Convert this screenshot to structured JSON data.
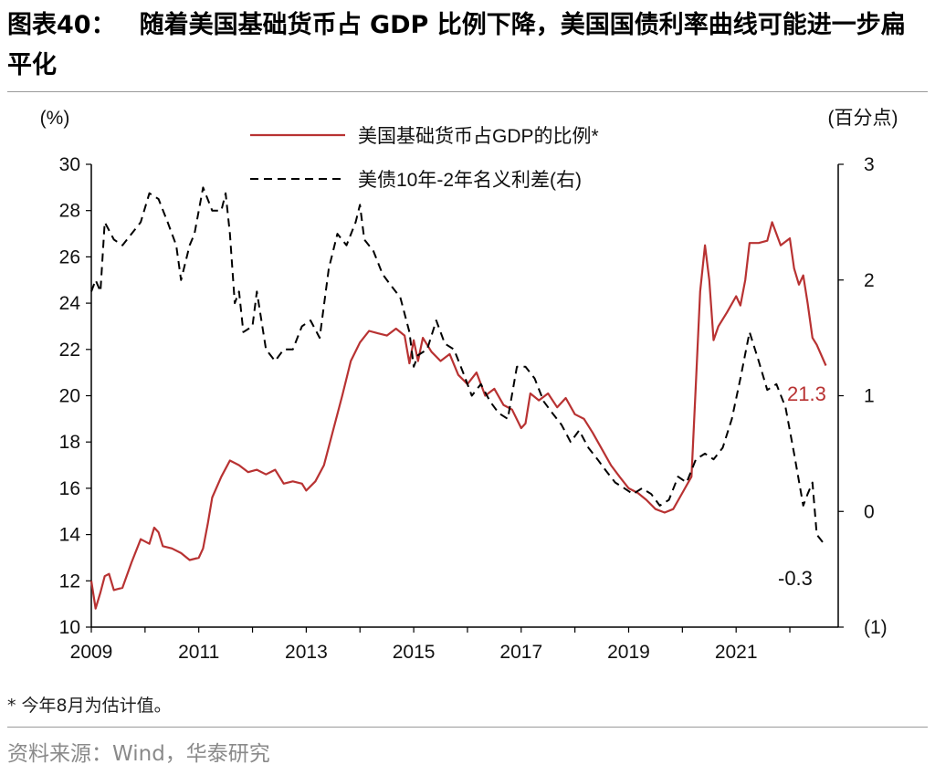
{
  "header": {
    "label": "图表40：",
    "text": "随着美国基础货币占 GDP 比例下降，美国国债利率曲线可能进一步扁平化"
  },
  "note": "* 今年8月为估计值。",
  "source": "资料来源：Wind，华泰研究",
  "chart_data": {
    "type": "line",
    "title": "",
    "y_left_unit": "(%)",
    "y_right_unit": "(百分点)",
    "x_ticks": [
      "2009",
      "2011",
      "2013",
      "2015",
      "2017",
      "2019",
      "2021"
    ],
    "x_range": [
      2009.0,
      2022.67
    ],
    "y_left_range": [
      10,
      30
    ],
    "y_left_ticks": [
      "10",
      "12",
      "14",
      "16",
      "18",
      "20",
      "22",
      "24",
      "26",
      "28",
      "30"
    ],
    "y_right_range": [
      -1,
      3
    ],
    "y_right_ticks": [
      "(1)",
      "0",
      "1",
      "2",
      "3"
    ],
    "legend_position": "top-center",
    "annotations": {
      "last_base_money": "21.3",
      "last_spread": "-0.3"
    },
    "colors": {
      "base_money": "#b83232",
      "spread": "#000000",
      "axis": "#000000",
      "label_red": "#b83232"
    },
    "series": [
      {
        "name": "美国基础货币占GDP的比例*",
        "axis": "left",
        "style": "solid",
        "points": [
          [
            2009.0,
            12.0
          ],
          [
            2009.08,
            10.8
          ],
          [
            2009.17,
            11.5
          ],
          [
            2009.25,
            12.2
          ],
          [
            2009.33,
            12.3
          ],
          [
            2009.42,
            11.6
          ],
          [
            2009.58,
            11.7
          ],
          [
            2009.75,
            12.8
          ],
          [
            2009.92,
            13.8
          ],
          [
            2010.08,
            13.6
          ],
          [
            2010.17,
            14.3
          ],
          [
            2010.25,
            14.1
          ],
          [
            2010.33,
            13.5
          ],
          [
            2010.5,
            13.4
          ],
          [
            2010.67,
            13.2
          ],
          [
            2010.83,
            12.9
          ],
          [
            2011.0,
            13.0
          ],
          [
            2011.08,
            13.4
          ],
          [
            2011.17,
            14.5
          ],
          [
            2011.25,
            15.6
          ],
          [
            2011.42,
            16.5
          ],
          [
            2011.58,
            17.2
          ],
          [
            2011.75,
            17.0
          ],
          [
            2011.92,
            16.7
          ],
          [
            2012.08,
            16.8
          ],
          [
            2012.25,
            16.6
          ],
          [
            2012.42,
            16.8
          ],
          [
            2012.58,
            16.2
          ],
          [
            2012.75,
            16.3
          ],
          [
            2012.92,
            16.2
          ],
          [
            2013.0,
            15.9
          ],
          [
            2013.17,
            16.3
          ],
          [
            2013.33,
            17.0
          ],
          [
            2013.5,
            18.5
          ],
          [
            2013.67,
            20.0
          ],
          [
            2013.83,
            21.5
          ],
          [
            2014.0,
            22.3
          ],
          [
            2014.17,
            22.8
          ],
          [
            2014.33,
            22.7
          ],
          [
            2014.5,
            22.6
          ],
          [
            2014.67,
            22.9
          ],
          [
            2014.83,
            22.6
          ],
          [
            2014.92,
            21.4
          ],
          [
            2015.0,
            22.4
          ],
          [
            2015.08,
            21.5
          ],
          [
            2015.17,
            22.5
          ],
          [
            2015.33,
            21.9
          ],
          [
            2015.5,
            21.5
          ],
          [
            2015.67,
            21.8
          ],
          [
            2015.83,
            20.9
          ],
          [
            2016.0,
            20.5
          ],
          [
            2016.17,
            21.0
          ],
          [
            2016.33,
            20.0
          ],
          [
            2016.5,
            20.3
          ],
          [
            2016.67,
            19.6
          ],
          [
            2016.83,
            19.4
          ],
          [
            2017.0,
            18.6
          ],
          [
            2017.08,
            18.8
          ],
          [
            2017.17,
            20.1
          ],
          [
            2017.33,
            19.8
          ],
          [
            2017.5,
            20.1
          ],
          [
            2017.67,
            19.5
          ],
          [
            2017.83,
            19.9
          ],
          [
            2018.0,
            19.2
          ],
          [
            2018.17,
            19.0
          ],
          [
            2018.33,
            18.4
          ],
          [
            2018.5,
            17.7
          ],
          [
            2018.67,
            17.0
          ],
          [
            2018.83,
            16.5
          ],
          [
            2019.0,
            16.0
          ],
          [
            2019.17,
            15.8
          ],
          [
            2019.33,
            15.5
          ],
          [
            2019.5,
            15.1
          ],
          [
            2019.67,
            14.95
          ],
          [
            2019.83,
            15.1
          ],
          [
            2020.0,
            15.8
          ],
          [
            2020.17,
            16.5
          ],
          [
            2020.25,
            20.5
          ],
          [
            2020.33,
            24.5
          ],
          [
            2020.42,
            26.5
          ],
          [
            2020.5,
            25.0
          ],
          [
            2020.58,
            22.4
          ],
          [
            2020.67,
            23.0
          ],
          [
            2020.83,
            23.6
          ],
          [
            2021.0,
            24.3
          ],
          [
            2021.08,
            23.9
          ],
          [
            2021.17,
            25.0
          ],
          [
            2021.25,
            26.6
          ],
          [
            2021.42,
            26.6
          ],
          [
            2021.58,
            26.7
          ],
          [
            2021.67,
            27.5
          ],
          [
            2021.83,
            26.5
          ],
          [
            2022.0,
            26.8
          ],
          [
            2022.08,
            25.5
          ],
          [
            2022.17,
            24.8
          ],
          [
            2022.25,
            25.2
          ],
          [
            2022.33,
            24.0
          ],
          [
            2022.42,
            22.5
          ],
          [
            2022.5,
            22.2
          ],
          [
            2022.67,
            21.3
          ]
        ]
      },
      {
        "name": "美债10年-2年名义利差(右)",
        "axis": "right",
        "style": "dashed",
        "points": [
          [
            2009.0,
            1.9
          ],
          [
            2009.08,
            2.0
          ],
          [
            2009.17,
            1.9
          ],
          [
            2009.25,
            2.5
          ],
          [
            2009.42,
            2.35
          ],
          [
            2009.58,
            2.3
          ],
          [
            2009.75,
            2.4
          ],
          [
            2009.92,
            2.5
          ],
          [
            2010.08,
            2.75
          ],
          [
            2010.25,
            2.7
          ],
          [
            2010.42,
            2.5
          ],
          [
            2010.58,
            2.3
          ],
          [
            2010.67,
            2.0
          ],
          [
            2010.83,
            2.3
          ],
          [
            2010.92,
            2.4
          ],
          [
            2011.08,
            2.8
          ],
          [
            2011.25,
            2.6
          ],
          [
            2011.42,
            2.6
          ],
          [
            2011.5,
            2.75
          ],
          [
            2011.58,
            2.4
          ],
          [
            2011.67,
            1.8
          ],
          [
            2011.75,
            1.9
          ],
          [
            2011.83,
            1.55
          ],
          [
            2012.0,
            1.6
          ],
          [
            2012.08,
            1.9
          ],
          [
            2012.25,
            1.4
          ],
          [
            2012.42,
            1.3
          ],
          [
            2012.58,
            1.4
          ],
          [
            2012.75,
            1.4
          ],
          [
            2012.92,
            1.6
          ],
          [
            2013.08,
            1.65
          ],
          [
            2013.25,
            1.5
          ],
          [
            2013.42,
            2.1
          ],
          [
            2013.58,
            2.4
          ],
          [
            2013.75,
            2.3
          ],
          [
            2013.92,
            2.5
          ],
          [
            2014.0,
            2.65
          ],
          [
            2014.08,
            2.35
          ],
          [
            2014.25,
            2.25
          ],
          [
            2014.42,
            2.05
          ],
          [
            2014.58,
            1.95
          ],
          [
            2014.75,
            1.85
          ],
          [
            2014.92,
            1.55
          ],
          [
            2015.0,
            1.25
          ],
          [
            2015.08,
            1.35
          ],
          [
            2015.25,
            1.4
          ],
          [
            2015.42,
            1.65
          ],
          [
            2015.58,
            1.45
          ],
          [
            2015.75,
            1.4
          ],
          [
            2015.92,
            1.2
          ],
          [
            2016.08,
            1.0
          ],
          [
            2016.25,
            1.1
          ],
          [
            2016.42,
            0.95
          ],
          [
            2016.58,
            0.85
          ],
          [
            2016.75,
            0.8
          ],
          [
            2016.92,
            1.25
          ],
          [
            2017.08,
            1.25
          ],
          [
            2017.25,
            1.15
          ],
          [
            2017.42,
            0.95
          ],
          [
            2017.58,
            0.85
          ],
          [
            2017.75,
            0.75
          ],
          [
            2017.92,
            0.6
          ],
          [
            2018.08,
            0.7
          ],
          [
            2018.25,
            0.55
          ],
          [
            2018.42,
            0.45
          ],
          [
            2018.58,
            0.35
          ],
          [
            2018.75,
            0.25
          ],
          [
            2018.92,
            0.2
          ],
          [
            2019.08,
            0.15
          ],
          [
            2019.25,
            0.2
          ],
          [
            2019.42,
            0.15
          ],
          [
            2019.58,
            0.05
          ],
          [
            2019.75,
            0.1
          ],
          [
            2019.92,
            0.3
          ],
          [
            2020.08,
            0.25
          ],
          [
            2020.25,
            0.45
          ],
          [
            2020.42,
            0.5
          ],
          [
            2020.58,
            0.45
          ],
          [
            2020.75,
            0.55
          ],
          [
            2020.92,
            0.8
          ],
          [
            2021.08,
            1.15
          ],
          [
            2021.25,
            1.55
          ],
          [
            2021.42,
            1.3
          ],
          [
            2021.58,
            1.05
          ],
          [
            2021.75,
            1.1
          ],
          [
            2021.92,
            0.9
          ],
          [
            2022.08,
            0.5
          ],
          [
            2022.25,
            0.05
          ],
          [
            2022.33,
            0.15
          ],
          [
            2022.42,
            0.25
          ],
          [
            2022.5,
            -0.2
          ],
          [
            2022.67,
            -0.3
          ]
        ]
      }
    ]
  }
}
